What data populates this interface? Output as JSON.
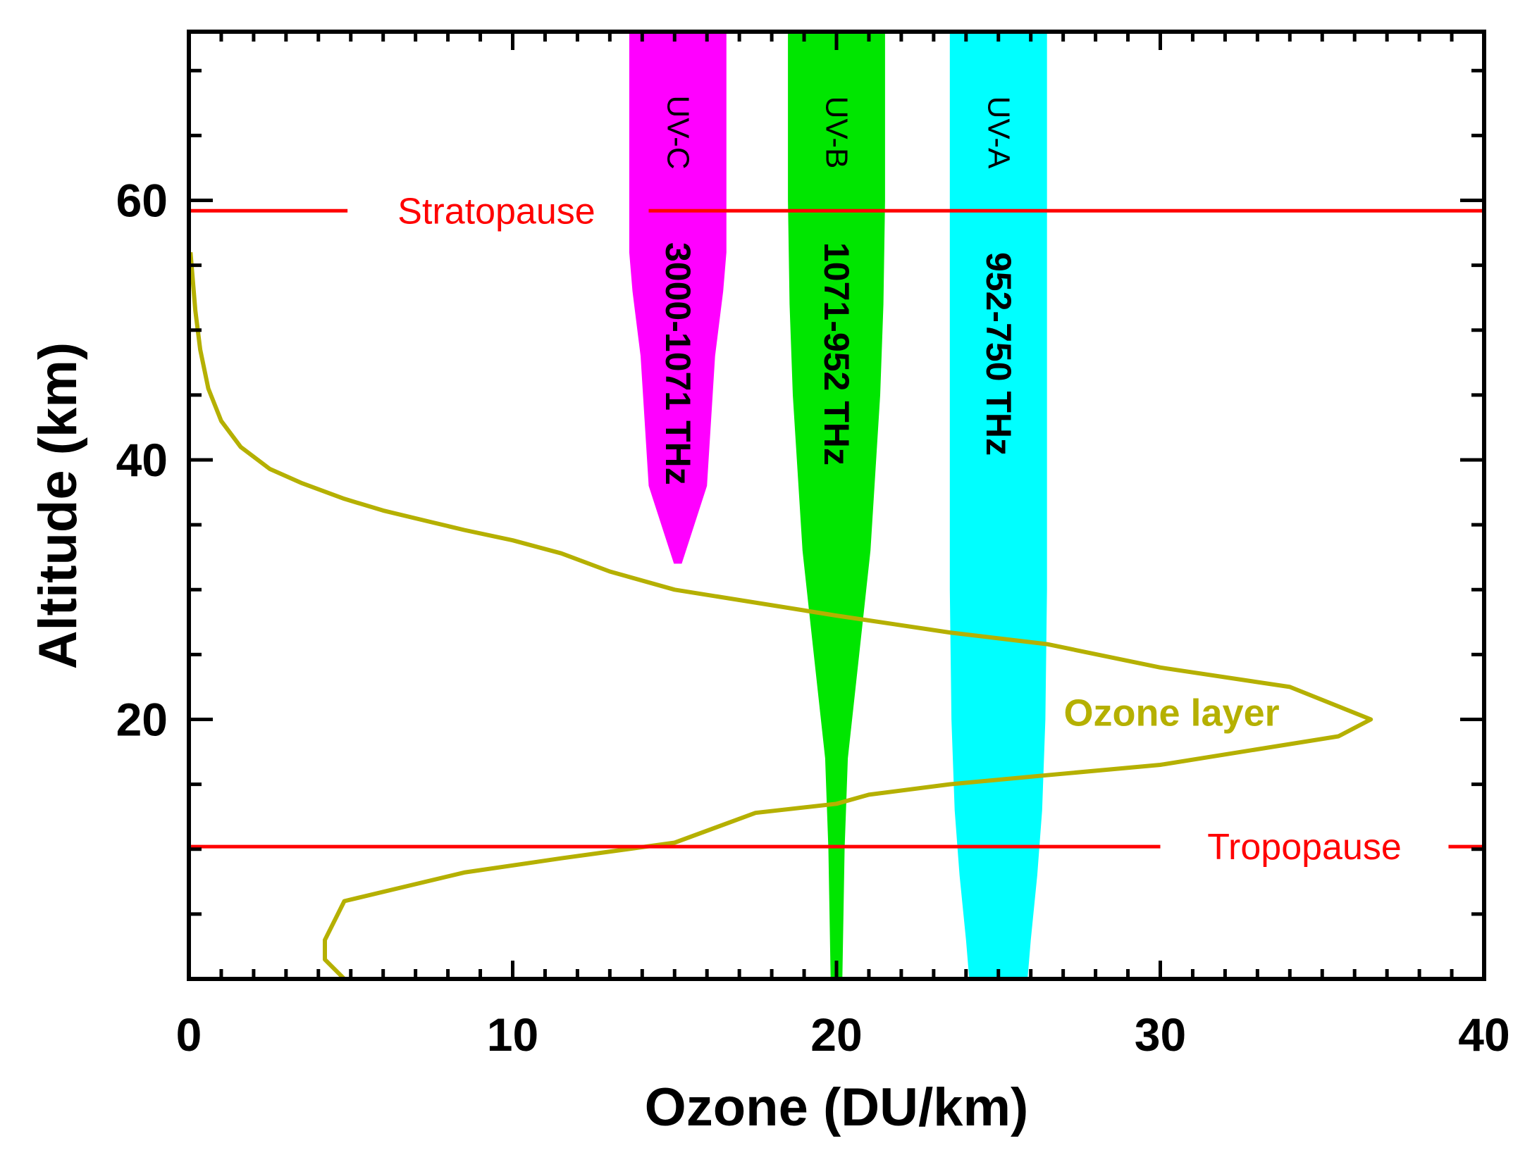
{
  "chart_data": {
    "type": "line",
    "xlabel": "Ozone (DU/km)",
    "ylabel": "Altitude (km)",
    "xlim": [
      0,
      40
    ],
    "ylim": [
      0,
      73
    ],
    "x_ticks": [
      0,
      10,
      20,
      30,
      40
    ],
    "y_ticks": [
      20,
      40,
      60
    ],
    "x_minor_step": 1,
    "y_minor_step": 5,
    "grid": false,
    "series": [
      {
        "name": "Ozone layer",
        "color": "#b5b000",
        "points": [
          [
            4.8,
            0
          ],
          [
            4.2,
            1.5
          ],
          [
            4.2,
            3.0
          ],
          [
            4.8,
            6.0
          ],
          [
            8.5,
            8.2
          ],
          [
            11.5,
            9.3
          ],
          [
            15,
            10.5
          ],
          [
            17.5,
            12.8
          ],
          [
            20,
            13.5
          ],
          [
            21,
            14.2
          ],
          [
            23.5,
            15.0
          ],
          [
            26.5,
            15.7
          ],
          [
            30,
            16.5
          ],
          [
            35.5,
            18.7
          ],
          [
            36.5,
            20.0
          ],
          [
            34,
            22.5
          ],
          [
            30,
            24.0
          ],
          [
            26.5,
            25.8
          ],
          [
            23.5,
            26.7
          ],
          [
            20,
            28.0
          ],
          [
            15,
            30.0
          ],
          [
            13,
            31.4
          ],
          [
            11.5,
            32.8
          ],
          [
            10,
            33.8
          ],
          [
            8.5,
            34.6
          ],
          [
            7.5,
            35.2
          ],
          [
            6,
            36.1
          ],
          [
            4.8,
            37.0
          ],
          [
            3.5,
            38.2
          ],
          [
            2.5,
            39.3
          ],
          [
            1.6,
            41.0
          ],
          [
            1.0,
            43.0
          ],
          [
            0.6,
            45.5
          ],
          [
            0.35,
            48.5
          ],
          [
            0.2,
            51.5
          ],
          [
            0.1,
            54.5
          ],
          [
            0.05,
            56.0
          ]
        ]
      }
    ],
    "bands": [
      {
        "name": "UV-C",
        "frequency": "3000-1071 THz",
        "color": "#ff00ff",
        "center": 15.1,
        "profile": [
          [
            32,
            0.12
          ],
          [
            38,
            0.9
          ],
          [
            42,
            1.0
          ],
          [
            48,
            1.15
          ],
          [
            53,
            1.4
          ],
          [
            56,
            1.5
          ],
          [
            73,
            1.5
          ]
        ]
      },
      {
        "name": "UV-B",
        "frequency": "1071-952 THz",
        "color": "#00e600",
        "center": 20.0,
        "profile": [
          [
            0,
            0.18
          ],
          [
            10,
            0.25
          ],
          [
            17,
            0.35
          ],
          [
            25,
            0.7
          ],
          [
            33,
            1.05
          ],
          [
            45,
            1.35
          ],
          [
            52,
            1.45
          ],
          [
            60,
            1.5
          ],
          [
            73,
            1.5
          ]
        ]
      },
      {
        "name": "UV-A",
        "frequency": "952-750 THz",
        "color": "#00ffff",
        "center": 25.0,
        "profile": [
          [
            0,
            0.9
          ],
          [
            3,
            1.0
          ],
          [
            8,
            1.2
          ],
          [
            13,
            1.35
          ],
          [
            20,
            1.45
          ],
          [
            30,
            1.5
          ],
          [
            73,
            1.5
          ]
        ]
      }
    ],
    "reference_lines": [
      {
        "label": "Stratopause",
        "y": 59.2,
        "color": "#ff0000"
      },
      {
        "label": "Tropopause",
        "y": 10.2,
        "color": "#ff0000"
      }
    ]
  }
}
